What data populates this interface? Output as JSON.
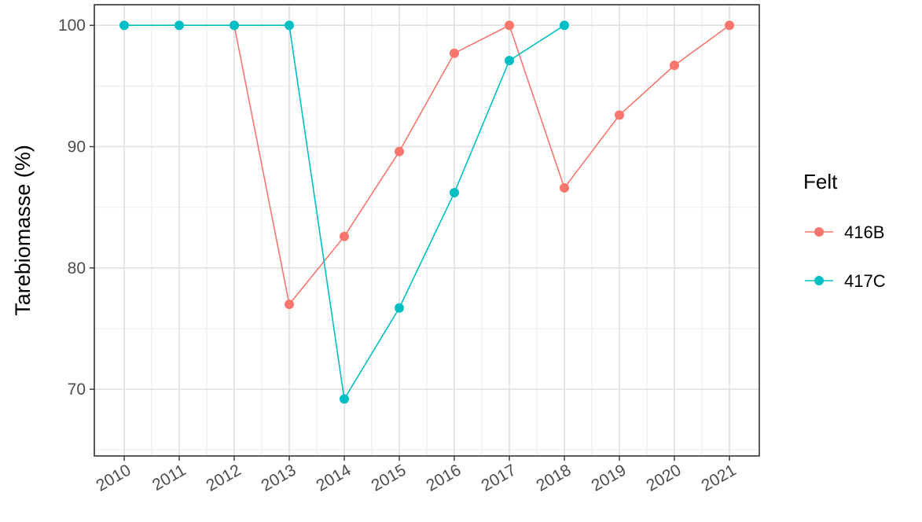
{
  "chart_data": {
    "type": "line",
    "xlabel": "",
    "ylabel": "Tarebiomasse (%)",
    "x": [
      "2010",
      "2011",
      "2012",
      "2013",
      "2014",
      "2015",
      "2016",
      "2017",
      "2018",
      "2019",
      "2020",
      "2021"
    ],
    "yticks": [
      "70",
      "80",
      "90",
      "100"
    ],
    "ylim": [
      64.5,
      101.7
    ],
    "grid": true,
    "legend": {
      "title": "Felt",
      "position": "right"
    },
    "series": [
      {
        "name": "416B",
        "color": "#F8766D",
        "points": [
          {
            "x": "2012",
            "y": 100
          },
          {
            "x": "2013",
            "y": 77.0
          },
          {
            "x": "2014",
            "y": 82.6
          },
          {
            "x": "2015",
            "y": 89.6
          },
          {
            "x": "2016",
            "y": 97.7
          },
          {
            "x": "2017",
            "y": 100
          },
          {
            "x": "2018",
            "y": 86.6
          },
          {
            "x": "2019",
            "y": 92.6
          },
          {
            "x": "2020",
            "y": 96.7
          },
          {
            "x": "2021",
            "y": 100
          }
        ]
      },
      {
        "name": "417C",
        "color": "#00BFC4",
        "points": [
          {
            "x": "2010",
            "y": 100
          },
          {
            "x": "2011",
            "y": 100
          },
          {
            "x": "2012",
            "y": 100
          },
          {
            "x": "2013",
            "y": 100
          },
          {
            "x": "2014",
            "y": 69.2
          },
          {
            "x": "2015",
            "y": 76.7
          },
          {
            "x": "2016",
            "y": 86.2
          },
          {
            "x": "2017",
            "y": 97.1
          },
          {
            "x": "2018",
            "y": 100
          }
        ]
      }
    ]
  }
}
